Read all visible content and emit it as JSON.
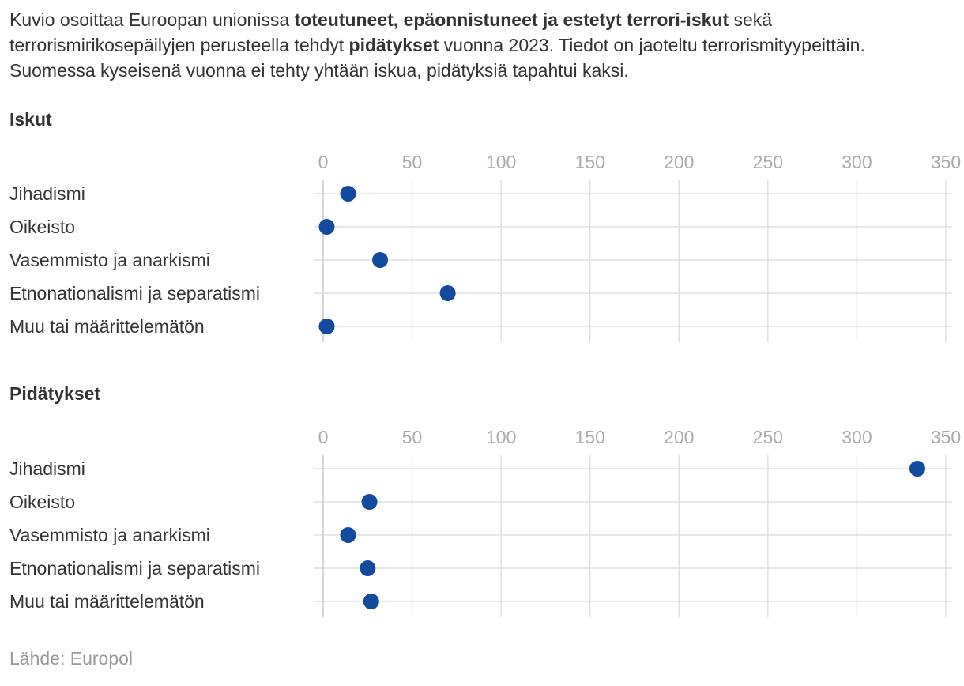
{
  "intro": {
    "p1": "Kuvio osoittaa Euroopan unionissa ",
    "b1": "toteutuneet, epäonnistuneet ja estetyt terrori-iskut",
    "p2": " sekä terrorismirikosepäilyjen perusteella tehdyt ",
    "b2": "pidätykset",
    "p3": " vuonna 2023. Tiedot on jaoteltu terrorismityypeittäin. Suomessa kyseisenä vuonna ei tehty yhtään iskua, pidätyksiä tapahtui kaksi."
  },
  "source": "Lähde: Europol",
  "colors": {
    "dot": "#124b9d",
    "grid": "#e0e0e0",
    "tick": "#aaaaaa",
    "text": "#333333",
    "axis": "#cccccc"
  },
  "chart_data": [
    {
      "type": "scatter",
      "title": "Iskut",
      "xlim": [
        0,
        350
      ],
      "xticks": [
        0,
        50,
        100,
        150,
        200,
        250,
        300,
        350
      ],
      "categories": [
        "Jihadismi",
        "Oikeisto",
        "Vasemmisto ja anarkismi",
        "Etnonationalismi ja separatismi",
        "Muu tai määrittelemätön"
      ],
      "values": [
        14,
        2,
        32,
        70,
        2
      ],
      "xlabel": "",
      "ylabel": "",
      "grid": true
    },
    {
      "type": "scatter",
      "title": "Pidätykset",
      "xlim": [
        0,
        350
      ],
      "xticks": [
        0,
        50,
        100,
        150,
        200,
        250,
        300,
        350
      ],
      "categories": [
        "Jihadismi",
        "Oikeisto",
        "Vasemmisto ja anarkismi",
        "Etnonationalismi ja separatismi",
        "Muu tai määrittelemätön"
      ],
      "values": [
        334,
        26,
        14,
        25,
        27
      ],
      "xlabel": "",
      "ylabel": "",
      "grid": true
    }
  ]
}
